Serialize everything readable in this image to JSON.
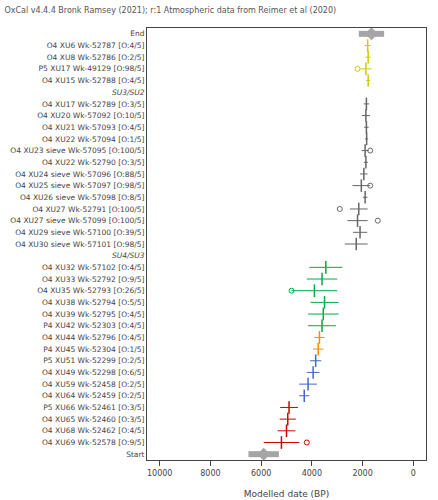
{
  "chart_data": {
    "type": "interval",
    "title": "OxCal v4.4.4 Bronk Ramsey (2021); r:1 Atmospheric data from Reimer et al (2020)",
    "xlabel": "Modelled date (BP)",
    "xlim": [
      10500,
      -500
    ],
    "xticks": [
      10000,
      8000,
      6000,
      4000,
      2000,
      0
    ],
    "grid": false,
    "categories": [
      "End",
      "O4 XU6 Wk-52787 [O:4/5]",
      "O4 XU8 Wk-52786 [O:2/5]",
      "P5 XU17 Wk-49129 [O:98/5]",
      "O4 XU15 Wk-52788 [O:4/5]",
      "SU3/SU2",
      "O4 XU17 Wk-52789 [O:3/5]",
      "O4 XU20 Wk-57092 [O:10/5]",
      "O4 XU21 Wk-57093 [O:4/5]",
      "O4 XU22 Wk-57094 [O:1/5]",
      "O4 XU23 sieve Wk-57095 [O:100/5]",
      "O4 XU22 Wk-52790 [O:3/5]",
      "O4 XU24 sieve Wk-57096 [O:88/5]",
      "O4 XU25 sieve Wk-57097 [O:98/5]",
      "O4 XU26 sieve Wk-57098 [O:8/5]",
      "O4 XU27 Wk-52791 [O:100/5]",
      "O4 XU27 sieve Wk-57099 [O:100/5]",
      "O4 XU29 sieve Wk-57100 [O:39/5]",
      "O4 XU30 sieve Wk-57101 [O:98/5]",
      "SU4/SU3",
      "O4 XU32 Wk-57102 [O:4/5]",
      "O4 XU33 Wk-52792 [O:9/5]",
      "O4 XU35 Wk-52793 [O:26/5]",
      "O4 XU38 Wk-52794 [O:5/5]",
      "O4 XU39 Wk-52795 [O:4/5]",
      "P4 XU42 Wk-52303 [O:4/5]",
      "O4 XU44 Wk-52796 [O:4/5]",
      "P4 XU45 Wk-52304 [O:1/5]",
      "P5 XU51 Wk-52299 [O:2/5]",
      "O4 XU49 Wk-52298 [O:6/5]",
      "O4 XU59 Wk-52458 [O:2/5]",
      "O4 XU64 Wk-52459 [O:2/5]",
      "P5 XU66 Wk-52461 [O:3/5]",
      "O4 XU65 Wk-52460 [O:3/5]",
      "O4 XU68 Wk-52462 [O:4/5]",
      "O4 XU69 Wk-52578 [O:9/5]",
      "Start"
    ],
    "series": [
      {
        "type": "boundary",
        "color": "#888888",
        "values": [
          1650,
          null,
          null,
          null,
          null,
          null,
          null,
          null,
          null,
          null,
          null,
          null,
          null,
          null,
          null,
          null,
          null,
          null,
          null,
          null,
          null,
          null,
          null,
          null,
          null,
          null,
          null,
          null,
          null,
          null,
          null,
          null,
          null,
          null,
          null,
          null,
          5900
        ],
        "errors": [
          500,
          null,
          null,
          null,
          null,
          null,
          null,
          null,
          null,
          null,
          null,
          null,
          null,
          null,
          null,
          null,
          null,
          null,
          null,
          null,
          null,
          null,
          null,
          null,
          null,
          null,
          null,
          null,
          null,
          null,
          null,
          null,
          null,
          null,
          null,
          null,
          600
        ]
      },
      {
        "type": "interval",
        "colors": [
          null,
          "#cccc00",
          "#cccc00",
          "#cccc00",
          "#cccc00",
          null,
          "#666666",
          "#666666",
          "#666666",
          "#666666",
          "#666666",
          "#666666",
          "#666666",
          "#666666",
          "#666666",
          "#666666",
          "#666666",
          "#666666",
          "#666666",
          null,
          "#00aa44",
          "#00aa44",
          "#00aa44",
          "#00aa44",
          "#00aa44",
          "#00aa44",
          "#ff8800",
          "#ff8800",
          "#4466cc",
          "#4466cc",
          "#4466cc",
          "#4466cc",
          "#cc0000",
          "#cc0000",
          "#cc0000",
          "#cc0000",
          null
        ],
        "values": [
          null,
          1800,
          1780,
          1870,
          1780,
          null,
          1850,
          1870,
          1850,
          1840,
          1900,
          1870,
          1950,
          2050,
          1900,
          2150,
          2200,
          2100,
          2250,
          null,
          3450,
          3600,
          3900,
          3500,
          3550,
          3600,
          3700,
          3750,
          3850,
          3950,
          4150,
          4300,
          4900,
          4950,
          5000,
          5200,
          null
        ],
        "errors": [
          null,
          120,
          100,
          220,
          80,
          null,
          110,
          160,
          90,
          60,
          140,
          80,
          150,
          350,
          90,
          350,
          400,
          280,
          450,
          null,
          650,
          600,
          900,
          550,
          600,
          550,
          200,
          200,
          220,
          250,
          350,
          200,
          350,
          320,
          350,
          700,
          null
        ],
        "outliers": [
          null,
          null,
          null,
          2200,
          null,
          null,
          null,
          null,
          null,
          null,
          1700,
          null,
          null,
          1700,
          null,
          2900,
          1400,
          null,
          null,
          null,
          null,
          null,
          4800,
          null,
          null,
          null,
          null,
          null,
          null,
          null,
          null,
          null,
          null,
          null,
          null,
          4200,
          null
        ]
      }
    ]
  }
}
